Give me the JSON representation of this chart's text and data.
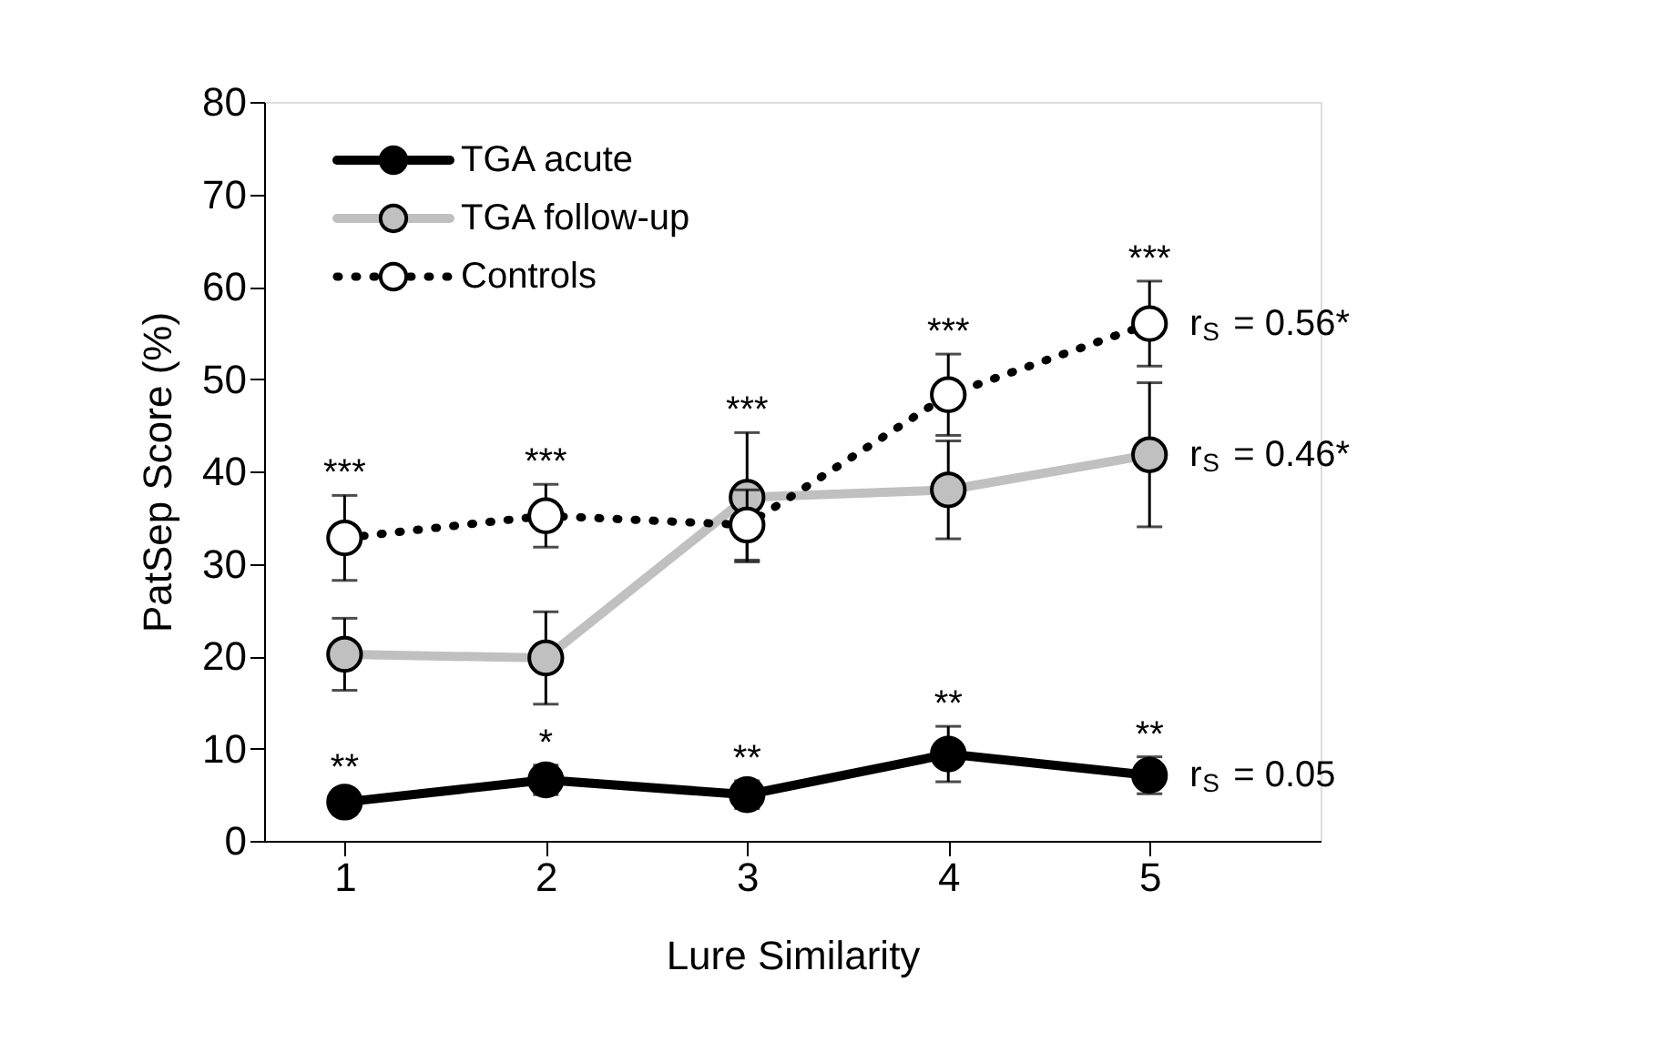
{
  "chart_data": {
    "type": "line",
    "xlabel": "Lure Similarity",
    "ylabel": "PatSep Score (%)",
    "x": [
      1,
      2,
      3,
      4,
      5
    ],
    "xlim": [
      0.6,
      5.85
    ],
    "xticks": [
      1,
      2,
      3,
      4,
      5
    ],
    "ylim": [
      0,
      80
    ],
    "yticks": [
      0,
      10,
      20,
      30,
      40,
      50,
      60,
      70,
      80
    ],
    "grid": false,
    "legend": "top left",
    "marker": "circle",
    "series": [
      {
        "name": "TGA acute",
        "color": "#000000",
        "line_style": "solid",
        "values": [
          4.2,
          6.6,
          5.0,
          9.4,
          7.1
        ],
        "errors": [
          1.3,
          1.6,
          1.5,
          3.0,
          2.0
        ]
      },
      {
        "name": "TGA follow-up",
        "color": "#c0c0c0",
        "line_style": "solid",
        "values": [
          20.2,
          19.8,
          37.2,
          38.0,
          41.8
        ],
        "errors": [
          3.9,
          5.0,
          7.0,
          5.3,
          7.8
        ]
      },
      {
        "name": "Controls",
        "color": "#ffffff",
        "line_style": "dotted",
        "values": [
          32.8,
          35.2,
          34.2,
          48.3,
          56.0
        ],
        "errors": [
          4.6,
          3.4,
          3.8,
          4.4,
          4.6
        ]
      }
    ],
    "annotations": [
      {
        "text": "**",
        "x": 1,
        "y": 4.2
      },
      {
        "text": "*",
        "x": 2,
        "y": 6.6
      },
      {
        "text": "**",
        "x": 3,
        "y": 5.0
      },
      {
        "text": "**",
        "x": 4,
        "y": 9.4
      },
      {
        "text": "**",
        "x": 5,
        "y": 7.1
      },
      {
        "text": "***",
        "x": 1,
        "y": 32.8
      },
      {
        "text": "***",
        "x": 2,
        "y": 35.2
      },
      {
        "text": "***",
        "x": 3,
        "y": 37.2
      },
      {
        "text": "***",
        "x": 4,
        "y": 48.3
      },
      {
        "text": "***",
        "x": 5,
        "y": 56.0
      },
      {
        "text": "r$_{S}$ = 0.56*",
        "x": 5,
        "y": 56.0
      },
      {
        "text": "r$_{S}$ = 0.46*",
        "x": 5,
        "y": 41.8
      },
      {
        "text": "r$_{S}$ = 0.05",
        "x": 5,
        "y": 7.1
      }
    ]
  }
}
